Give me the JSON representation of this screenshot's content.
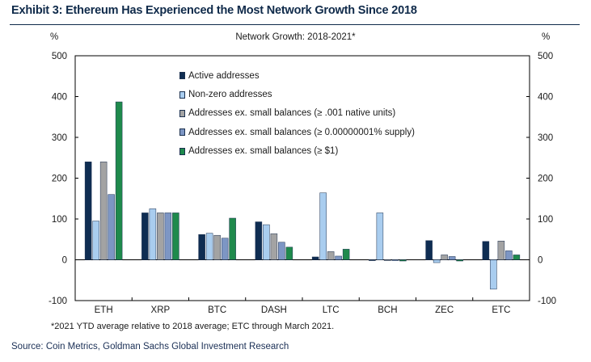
{
  "title": "Exhibit 3: Ethereum Has Experienced the Most Network Growth Since 2018",
  "footnote": "*2021 YTD average relative to 2018 average; ETC through March 2021.",
  "source": "Source: Coin Metrics, Goldman Sachs Global Investment Research",
  "chart_data": {
    "type": "bar",
    "title": "Network Growth: 2018-2021*",
    "ylabel_left": "%",
    "ylabel_right": "%",
    "ylim": [
      -100,
      500
    ],
    "yticks": [
      -100,
      0,
      100,
      200,
      300,
      400,
      500
    ],
    "grid": false,
    "legend_position": "top-left",
    "categories": [
      "ETH",
      "XRP",
      "BTC",
      "DASH",
      "LTC",
      "BCH",
      "ZEC",
      "ETC"
    ],
    "series": [
      {
        "name": "Active addresses",
        "color": "#0f2d52",
        "values": [
          240,
          115,
          62,
          93,
          7,
          -2,
          47,
          45
        ]
      },
      {
        "name": "Non-zero addresses",
        "color": "#a9cdef",
        "values": [
          95,
          125,
          65,
          86,
          164,
          115,
          -7,
          -72
        ]
      },
      {
        "name": "Addresses ex. small balances (≥ .001 native units)",
        "color": "#a3a3a3",
        "values": [
          240,
          115,
          60,
          64,
          20,
          -2,
          12,
          46
        ]
      },
      {
        "name": "Addresses ex. small balances (≥ 0.00000001% supply)",
        "color": "#7d96c4",
        "values": [
          160,
          115,
          53,
          43,
          9,
          -2,
          8,
          22
        ]
      },
      {
        "name": "Addresses ex. small balances (≥ $1)",
        "color": "#1f8a4c",
        "values": [
          387,
          115,
          102,
          31,
          26,
          -3,
          -3,
          12
        ]
      }
    ]
  }
}
